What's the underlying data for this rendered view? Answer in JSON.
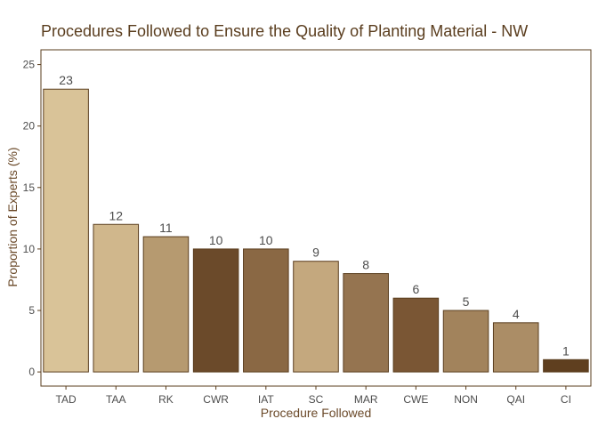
{
  "chart_data": {
    "type": "bar",
    "title": "Procedures Followed to Ensure the Quality of Planting Material -  NW",
    "xlabel": "Procedure Followed",
    "ylabel": "Proportion of Experts (%)",
    "ylim": [
      -1.15,
      26.2
    ],
    "yticks": [
      0,
      5,
      10,
      15,
      20,
      25
    ],
    "grid": false,
    "legend": "none",
    "categories": [
      "TAD",
      "TAA",
      "RK",
      "CWR",
      "IAT",
      "SC",
      "MAR",
      "CWE",
      "NON",
      "QAI",
      "CI"
    ],
    "values": [
      23,
      12,
      11,
      10,
      10,
      9,
      8,
      6,
      5,
      4,
      1
    ],
    "data_labels": [
      "23",
      "12",
      "11",
      "10",
      "10",
      "9",
      "8",
      "6",
      "5",
      "4",
      "1"
    ],
    "colors": [
      "#d9c398",
      "#d0b78c",
      "#b69a70",
      "#6b4a2a",
      "#8a6844",
      "#c4a87e",
      "#957450",
      "#7a5634",
      "#a2835c",
      "#ab8d66",
      "#5f3f1f"
    ],
    "bar_outline_color": "#5a3d1e",
    "panel_border_color": "#5a3d1e"
  }
}
